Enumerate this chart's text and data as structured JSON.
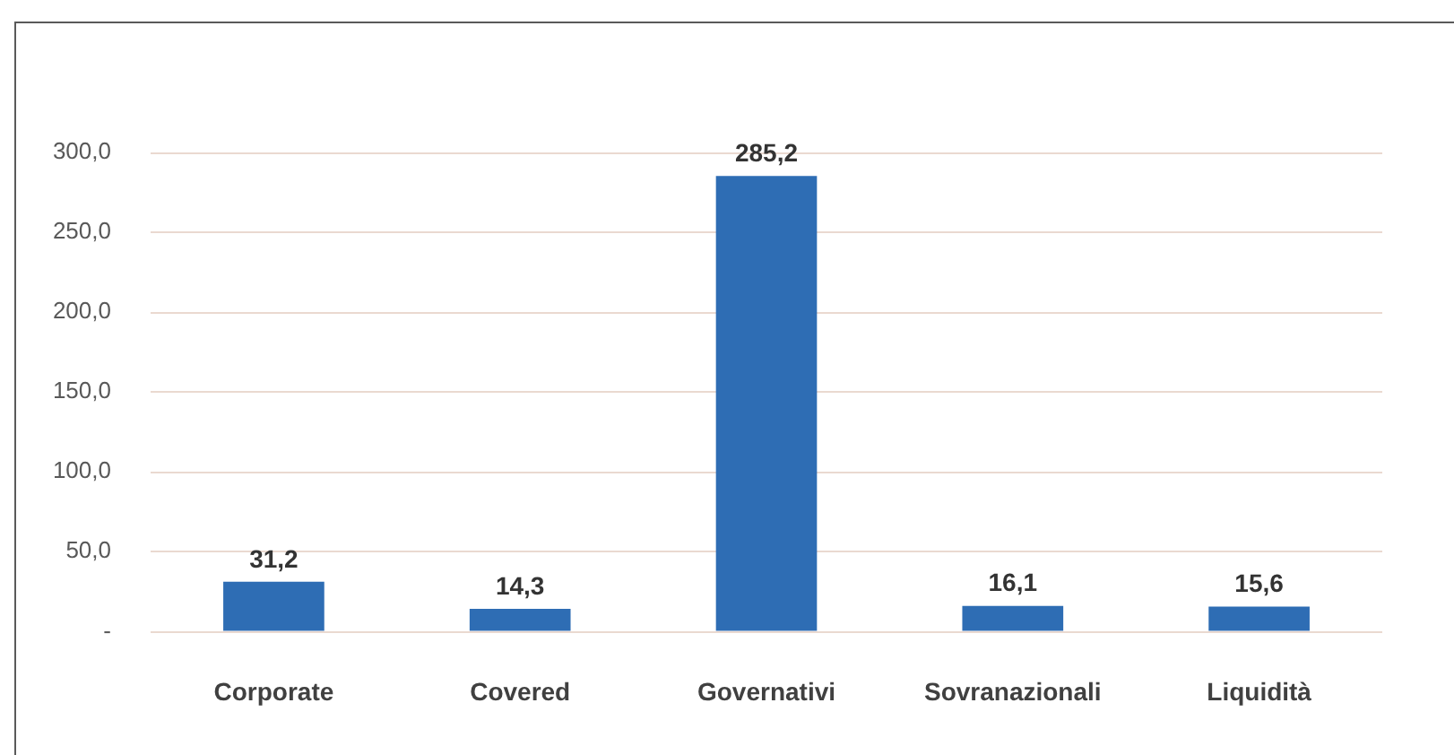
{
  "chart_data": {
    "type": "bar",
    "categories": [
      "Corporate",
      "Covered",
      "Governativi",
      "Sovranazionali",
      "Liquidità"
    ],
    "values": [
      31.2,
      14.3,
      285.2,
      16.1,
      15.6
    ],
    "color": "#2e6db4",
    "value_labels": [
      "31,2",
      "14,3",
      "285,2",
      "16,1",
      "15,6"
    ],
    "ylim": [
      0,
      300
    ],
    "yticks": [
      {
        "value": 0,
        "label": "-"
      },
      {
        "value": 50,
        "label": "50,0"
      },
      {
        "value": 100,
        "label": "100,0"
      },
      {
        "value": 150,
        "label": "150,0"
      },
      {
        "value": 200,
        "label": "200,0"
      },
      {
        "value": 250,
        "label": "250,0"
      },
      {
        "value": 300,
        "label": "300,0"
      }
    ],
    "grid": "y",
    "legend": false
  }
}
